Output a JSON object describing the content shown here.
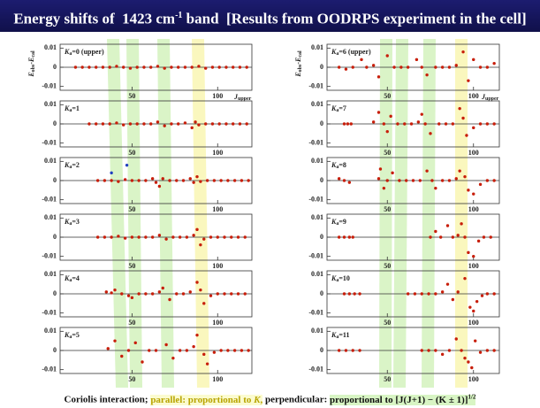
{
  "title": "Energy shifts of  1423 cm",
  "title_sup": "-1",
  "title_rest": " band  [Results from OODRPS experiment in the cell]",
  "footer": {
    "lead": "Coriolis interaction; ",
    "parallel": "parallel: proportional to ",
    "parallel_k": "K",
    "parallel_end": ",",
    "mid": " perpendicular: ",
    "perp": "proportional to [J(J+1) − (K ± 1)]",
    "perp_sup": "1/2"
  },
  "chart_data": [
    {
      "type": "scatter",
      "label": {
        "k": "K",
        "sub": "a",
        "rest": "=0 (upper)"
      },
      "y_label": {
        "e1": "E",
        "s1": "obs",
        "e2": "-E",
        "s2": "cal"
      },
      "x_label": {
        "j": "J",
        "sub": "upper"
      },
      "xlim": [
        8,
        120
      ],
      "ylim": [
        -0.012,
        0.012
      ],
      "xticks": [
        50,
        100
      ],
      "yticks": [
        0.01,
        0,
        -0.01
      ],
      "series": [
        {
          "color": "#c81e0a",
          "x": [
            17,
            21,
            25,
            29,
            33,
            37,
            41,
            45,
            49,
            53,
            57,
            61,
            65,
            69,
            73,
            77,
            81,
            85,
            89,
            93,
            97,
            101,
            105,
            109,
            113,
            117
          ],
          "values": [
            0,
            0,
            0,
            0,
            0,
            0,
            0.0005,
            0,
            -0.0005,
            0,
            0,
            0,
            0.0005,
            -0.0005,
            0,
            0,
            0,
            0,
            0.0005,
            -0.0005,
            0,
            0,
            0,
            0,
            0,
            0
          ]
        }
      ]
    },
    {
      "type": "scatter",
      "label": {
        "k": "K",
        "sub": "a",
        "rest": "=1"
      },
      "xlim": [
        8,
        120
      ],
      "ylim": [
        -0.012,
        0.012
      ],
      "xticks": [
        50,
        100
      ],
      "yticks": [
        0.01,
        0,
        -0.01
      ],
      "series": [
        {
          "color": "#c81e0a",
          "x": [
            25,
            29,
            33,
            37,
            41,
            45,
            49,
            53,
            57,
            61,
            65,
            69,
            73,
            77,
            81,
            85,
            87,
            89,
            93,
            97,
            101,
            105,
            109,
            113,
            117
          ],
          "values": [
            0,
            0,
            0,
            0,
            0.0005,
            -0.0005,
            0,
            0,
            0,
            0,
            0.001,
            -0.001,
            0,
            0,
            0.0005,
            -0.002,
            0.001,
            -0.0005,
            0,
            0,
            0,
            0,
            0,
            0,
            0
          ]
        }
      ]
    },
    {
      "type": "scatter",
      "label": {
        "k": "K",
        "sub": "a",
        "rest": "=2"
      },
      "xlim": [
        8,
        120
      ],
      "ylim": [
        -0.012,
        0.012
      ],
      "xticks": [
        50,
        100
      ],
      "yticks": [
        0.01,
        0,
        -0.01
      ],
      "series": [
        {
          "color": "#c81e0a",
          "x": [
            30,
            34,
            38,
            42,
            46,
            50,
            54,
            58,
            62,
            64,
            66,
            68,
            72,
            76,
            80,
            84,
            86,
            88,
            90,
            94,
            98,
            102,
            106,
            110,
            114,
            118
          ],
          "values": [
            0,
            0,
            0,
            -0.0005,
            0.0005,
            0,
            0,
            0,
            0.001,
            -0.001,
            -0.003,
            0.001,
            0,
            0,
            0,
            0.001,
            -0.001,
            0.002,
            -0.0005,
            0,
            0,
            0,
            0,
            0,
            0,
            0
          ]
        },
        {
          "color": "#2040c0",
          "x": [
            38,
            47
          ],
          "values": [
            0.004,
            0.008
          ]
        }
      ]
    },
    {
      "type": "scatter",
      "label": {
        "k": "K",
        "sub": "a",
        "rest": "=3"
      },
      "xlim": [
        8,
        120
      ],
      "ylim": [
        -0.012,
        0.012
      ],
      "xticks": [
        50,
        100
      ],
      "yticks": [
        0.01,
        0,
        -0.01
      ],
      "series": [
        {
          "color": "#c81e0a",
          "x": [
            30,
            34,
            38,
            42,
            46,
            50,
            54,
            58,
            62,
            66,
            70,
            74,
            78,
            82,
            86,
            88,
            90,
            92,
            96,
            100,
            104,
            108,
            112,
            116
          ],
          "values": [
            0,
            0,
            0,
            0.0005,
            -0.0005,
            0,
            0,
            0,
            0,
            0.001,
            -0.001,
            0,
            0,
            0,
            0.001,
            0.004,
            -0.004,
            -0.001,
            0,
            0,
            0,
            0,
            0,
            0
          ]
        }
      ]
    },
    {
      "type": "scatter",
      "label": {
        "k": "K",
        "sub": "a",
        "rest": "=4"
      },
      "xlim": [
        8,
        120
      ],
      "ylim": [
        -0.012,
        0.012
      ],
      "xticks": [
        50,
        100
      ],
      "yticks": [
        0.01,
        0,
        -0.01
      ],
      "series": [
        {
          "color": "#c81e0a",
          "x": [
            35,
            38,
            40,
            44,
            48,
            50,
            54,
            58,
            62,
            66,
            68,
            72,
            76,
            80,
            84,
            88,
            90,
            92,
            96,
            100,
            104,
            108,
            112,
            116
          ],
          "values": [
            0.001,
            0.0005,
            0.002,
            0,
            -0.001,
            -0.002,
            0,
            0,
            0,
            0.001,
            0.003,
            -0.003,
            0,
            0,
            0.001,
            0.006,
            0.002,
            -0.005,
            -0.001,
            0,
            0,
            0,
            0,
            0
          ]
        }
      ]
    },
    {
      "type": "scatter",
      "label": {
        "k": "K",
        "sub": "a",
        "rest": "=5"
      },
      "xlim": [
        8,
        120
      ],
      "ylim": [
        -0.012,
        0.012
      ],
      "xticks": [
        50,
        100
      ],
      "yticks": [
        0.01,
        0,
        -0.01
      ],
      "series": [
        {
          "color": "#c81e0a",
          "x": [
            36,
            40,
            44,
            48,
            52,
            56,
            60,
            64,
            70,
            74,
            78,
            82,
            86,
            88,
            92,
            94,
            98,
            102,
            106,
            110,
            114,
            118
          ],
          "values": [
            0.001,
            0.005,
            -0.003,
            0,
            0.004,
            -0.006,
            0,
            0,
            0.003,
            -0.004,
            0,
            0,
            0.002,
            0.008,
            -0.002,
            -0.007,
            -0.001,
            0,
            0,
            0,
            0,
            0
          ]
        }
      ]
    },
    {
      "type": "scatter",
      "label": {
        "k": "K",
        "sub": "a",
        "rest": "=6 (upper)"
      },
      "y_label": {
        "e1": "E",
        "s1": "obs",
        "e2": "-E",
        "s2": "cal"
      },
      "x_label": {
        "j": "J",
        "sub": "upper"
      },
      "xlim": [
        15,
        115
      ],
      "ylim": [
        -0.012,
        0.012
      ],
      "xticks": [
        50,
        100
      ],
      "yticks": [
        0.01,
        0,
        -0.01
      ],
      "series": [
        {
          "color": "#c81e0a",
          "x": [
            22,
            26,
            30,
            35,
            38,
            42,
            45,
            50,
            54,
            58,
            62,
            67,
            70,
            73,
            78,
            82,
            86,
            90,
            94,
            97,
            100,
            104,
            108,
            112
          ],
          "values": [
            0,
            -0.001,
            0,
            0.004,
            0,
            0.001,
            -0.005,
            0.006,
            0,
            0,
            0,
            0.004,
            0,
            -0.004,
            0,
            0,
            0,
            0.001,
            0.008,
            -0.007,
            0.004,
            0,
            0,
            0.002
          ]
        }
      ]
    },
    {
      "type": "scatter",
      "label": {
        "k": "K",
        "sub": "a",
        "rest": "=7"
      },
      "xlim": [
        15,
        115
      ],
      "ylim": [
        -0.012,
        0.012
      ],
      "xticks": [
        50,
        100
      ],
      "yticks": [
        0.01,
        0,
        -0.01
      ],
      "series": [
        {
          "color": "#c81e0a",
          "x": [
            25,
            27,
            29,
            42,
            45,
            48,
            50,
            52,
            56,
            60,
            64,
            68,
            70,
            72,
            75,
            80,
            84,
            88,
            92,
            94,
            96,
            100,
            104,
            108,
            112
          ],
          "values": [
            0,
            0,
            0,
            0.001,
            0.006,
            0,
            -0.004,
            0.004,
            0,
            0,
            0,
            0.001,
            0.005,
            0,
            -0.005,
            0,
            0,
            0,
            0.008,
            0.003,
            -0.006,
            -0.002,
            0,
            0,
            0
          ]
        }
      ]
    },
    {
      "type": "scatter",
      "label": {
        "k": "K",
        "sub": "a",
        "rest": "=8"
      },
      "xlim": [
        15,
        115
      ],
      "ylim": [
        -0.012,
        0.012
      ],
      "xticks": [
        50,
        100
      ],
      "yticks": [
        0.01,
        0,
        -0.01
      ],
      "series": [
        {
          "color": "#c81e0a",
          "x": [
            22,
            25,
            28,
            45,
            46,
            48,
            50,
            53,
            57,
            61,
            65,
            69,
            73,
            76,
            78,
            82,
            86,
            90,
            92,
            95,
            97,
            100,
            104,
            108,
            112
          ],
          "values": [
            0.001,
            0,
            -0.001,
            0.001,
            0.006,
            -0.004,
            0,
            0.004,
            0,
            0,
            0,
            0,
            0.005,
            0,
            -0.004,
            0,
            0,
            0.001,
            0.005,
            0.002,
            -0.005,
            -0.007,
            -0.002,
            0,
            0
          ]
        }
      ]
    },
    {
      "type": "scatter",
      "label": {
        "k": "K",
        "sub": "a",
        "rest": "=9"
      },
      "xlim": [
        15,
        115
      ],
      "ylim": [
        -0.012,
        0.012
      ],
      "xticks": [
        50,
        100
      ],
      "yticks": [
        0.01,
        0,
        -0.01
      ],
      "series": [
        {
          "color": "#c81e0a",
          "x": [
            22,
            25,
            28,
            30,
            75,
            78,
            81,
            85,
            88,
            91,
            93,
            95,
            97,
            100,
            103,
            106,
            110
          ],
          "values": [
            0,
            0,
            0,
            0,
            0,
            0.003,
            0,
            0.006,
            0,
            0.001,
            0.007,
            0,
            -0.008,
            -0.01,
            -0.002,
            0,
            0
          ]
        }
      ]
    },
    {
      "type": "scatter",
      "label": {
        "k": "K",
        "sub": "a",
        "rest": "=10"
      },
      "xlim": [
        15,
        115
      ],
      "ylim": [
        -0.012,
        0.012
      ],
      "xticks": [
        50,
        100
      ],
      "yticks": [
        0.01,
        0,
        -0.01
      ],
      "series": [
        {
          "color": "#c81e0a",
          "x": [
            25,
            28,
            31,
            34,
            62,
            66,
            70,
            74,
            78,
            82,
            85,
            88,
            91,
            95,
            98,
            100,
            102,
            105,
            108,
            112
          ],
          "values": [
            0,
            0,
            0,
            0,
            0,
            0,
            0,
            0,
            0,
            0.001,
            0.005,
            -0.003,
            0.001,
            0.008,
            -0.007,
            -0.009,
            -0.004,
            -0.001,
            0,
            0
          ]
        }
      ]
    },
    {
      "type": "scatter",
      "label": {
        "k": "K",
        "sub": "a",
        "rest": "=11"
      },
      "xlim": [
        15,
        115
      ],
      "ylim": [
        -0.012,
        0.012
      ],
      "xticks": [
        50,
        100
      ],
      "yticks": [
        0.01,
        0,
        -0.01
      ],
      "series": [
        {
          "color": "#c81e0a",
          "x": [
            22,
            26,
            30,
            34,
            70,
            74,
            78,
            82,
            86,
            90,
            93,
            95,
            97,
            99,
            101,
            104,
            108,
            112
          ],
          "values": [
            0,
            0,
            0,
            0,
            0,
            0,
            0,
            -0.002,
            0,
            0.006,
            0,
            -0.004,
            -0.006,
            -0.009,
            0.005,
            -0.001,
            0,
            0
          ]
        }
      ]
    }
  ]
}
